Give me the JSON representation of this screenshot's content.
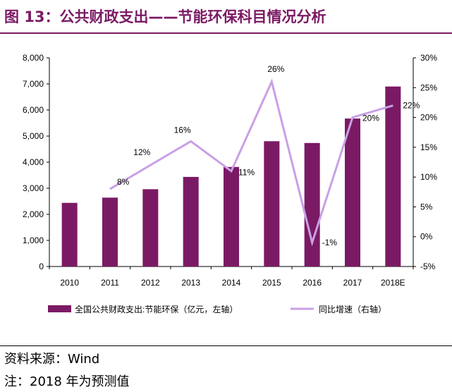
{
  "header": {
    "title": "图 13：公共财政支出——节能环保科目情况分析"
  },
  "footer": {
    "source": "资料来源：Wind",
    "note": "注：2018 年为预测值"
  },
  "chart_data": {
    "type": "bar",
    "categories": [
      "2010",
      "2011",
      "2012",
      "2013",
      "2014",
      "2015",
      "2016",
      "2017",
      "2018E"
    ],
    "series": [
      {
        "name": "全国公共财政支出:节能环保（亿元，左轴）",
        "type": "bar",
        "axis": "left",
        "values": [
          2440,
          2640,
          2963,
          3435,
          3816,
          4803,
          4735,
          5672,
          6900
        ]
      },
      {
        "name": "同比增速（右轴）",
        "type": "line",
        "axis": "right",
        "values": [
          null,
          8,
          12,
          16,
          11,
          26,
          -1,
          20,
          22
        ],
        "labels": [
          "",
          "8%",
          "12%",
          "16%",
          "11%",
          "26%",
          "-1%",
          "20%",
          "22%"
        ]
      }
    ],
    "y_left": {
      "lim": [
        0,
        8000
      ],
      "ticks": [
        "0",
        "1,000",
        "2,000",
        "3,000",
        "4,000",
        "5,000",
        "6,000",
        "7,000",
        "8,000"
      ]
    },
    "y_right": {
      "lim": [
        -5,
        30
      ],
      "ticks": [
        "-5%",
        "0%",
        "5%",
        "10%",
        "15%",
        "20%",
        "25%",
        "30%"
      ]
    },
    "colors": {
      "bar": "#7b1a64",
      "line": "#c9a0e6",
      "title": "#7b1a64"
    },
    "grid": false,
    "legend": "bottom"
  }
}
